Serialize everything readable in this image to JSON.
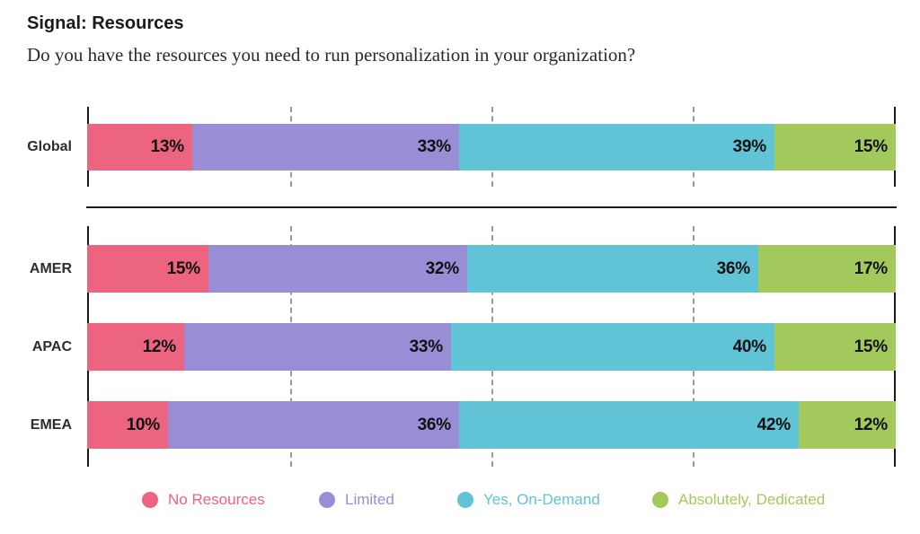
{
  "header": {
    "title": "Signal: Resources",
    "question": "Do you have the resources you need to run personalization in your organization?"
  },
  "colors": {
    "no_resources": "#EC647F",
    "limited": "#998ED6",
    "yes_on_demand": "#61C3D6",
    "absolutely_dedicated": "#A3C95C",
    "axis_line": "#1a1a1a",
    "gridline": "#9b9b9b",
    "value_label": "#111111"
  },
  "legend": [
    {
      "label": "No Resources",
      "color": "#EC647F"
    },
    {
      "label": "Limited",
      "color": "#998ED6"
    },
    {
      "label": "Yes, On-Demand",
      "color": "#61C3D6"
    },
    {
      "label": "Absolutely, Dedicated",
      "color": "#A3C95C"
    }
  ],
  "chart_data": {
    "type": "bar",
    "orientation": "horizontal",
    "stacked": true,
    "unit": "%",
    "xlim": [
      0,
      100
    ],
    "gridlines_percent": [
      25,
      50,
      75
    ],
    "grid": "dashed-vertical",
    "value_labels": "inside-end",
    "legend_position": "bottom",
    "categories": [
      "Global",
      "AMER",
      "APAC",
      "EMEA"
    ],
    "groups": [
      {
        "name": "global",
        "row_indexes": [
          0
        ]
      },
      {
        "name": "regions",
        "row_indexes": [
          1,
          2,
          3
        ]
      }
    ],
    "series": [
      {
        "name": "No Resources",
        "color": "#EC647F",
        "values": [
          13,
          15,
          12,
          10
        ]
      },
      {
        "name": "Limited",
        "color": "#998ED6",
        "values": [
          33,
          32,
          33,
          36
        ]
      },
      {
        "name": "Yes, On-Demand",
        "color": "#61C3D6",
        "values": [
          39,
          36,
          40,
          42
        ]
      },
      {
        "name": "Absolutely, Dedicated",
        "color": "#A3C95C",
        "values": [
          15,
          17,
          15,
          12
        ]
      }
    ]
  }
}
